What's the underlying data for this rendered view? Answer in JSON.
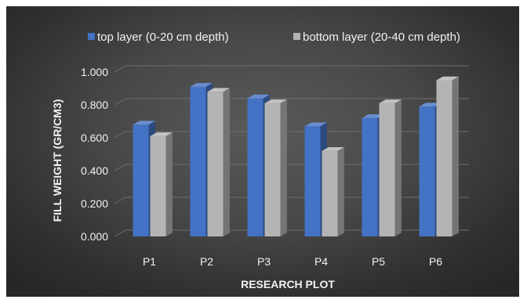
{
  "chart_data": {
    "type": "bar",
    "title": "",
    "xlabel": "RESEARCH PLOT",
    "ylabel": "FILL WEIGHT (GR/CM3)",
    "categories": [
      "P1",
      "P2",
      "P3",
      "P4",
      "P5",
      "P6"
    ],
    "series": [
      {
        "name": "top layer (0-20 cm depth)",
        "values": [
          0.68,
          0.91,
          0.84,
          0.67,
          0.72,
          0.79
        ],
        "color": "#4472c4"
      },
      {
        "name": "bottom layer (20-40 cm depth)",
        "values": [
          0.61,
          0.88,
          0.81,
          0.52,
          0.81,
          0.95
        ],
        "color": "#b4b4b4"
      }
    ],
    "ylim": [
      0,
      1.0
    ],
    "yticks": [
      "0.000",
      "0.200",
      "0.400",
      "0.600",
      "0.800",
      "1.000"
    ],
    "grid": true,
    "legend_position": "top",
    "style": "3d-clustered-column"
  }
}
